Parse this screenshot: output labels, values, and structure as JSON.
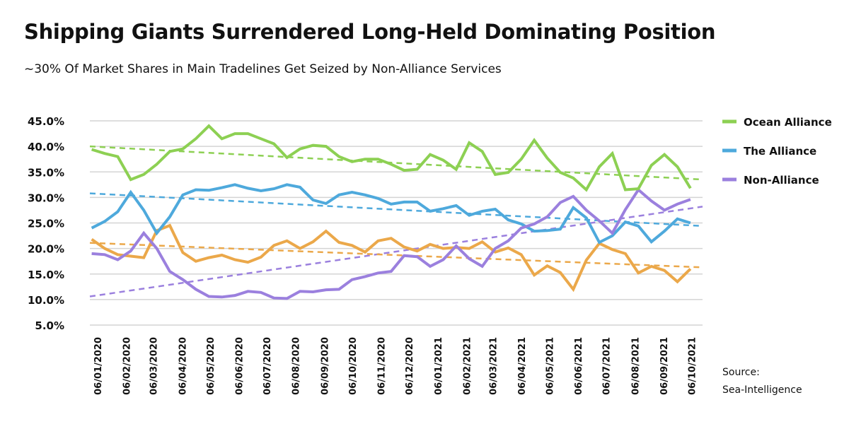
{
  "title": "Shipping Giants Surrendered Long-Held Dominating Position",
  "subtitle": "~30% Of Market Shares in Main Tradelines Get Seized by Non-Alliance Services",
  "source": {
    "line1": "Source:",
    "line2": "Sea-Intelligence"
  },
  "chart_data": {
    "type": "line",
    "title": "Shipping Giants Surrendered Long-Held Dominating Position",
    "subtitle": "~30% Of Market Shares in Main Tradelines Get Seized by Non-Alliance Services",
    "xlabel": "",
    "ylabel": "",
    "ylim": [
      5,
      45
    ],
    "xlim": [
      "2019-12-28",
      "2021-10-17"
    ],
    "grid": true,
    "legend_position": "right",
    "y_ticks": [
      "45.0%",
      "40.0%",
      "35.0%",
      "30.0%",
      "25.0%",
      "20.0%",
      "15.0%",
      "10.0%",
      "5.0%"
    ],
    "y_tick_values": [
      45,
      40,
      35,
      30,
      25,
      20,
      15,
      10,
      5
    ],
    "x_ticks": [
      "06/01/2020",
      "06/02/2020",
      "06/03/2020",
      "06/04/2020",
      "06/05/2020",
      "06/06/2020",
      "06/07/2020",
      "06/08/2020",
      "06/09/2020",
      "06/10/2020",
      "06/11/2020",
      "06/12/2020",
      "06/01/2021",
      "06/02/2021",
      "06/03/2021",
      "06/04/2021",
      "06/05/2021",
      "06/06/2021",
      "06/07/2021",
      "06/08/2021",
      "06/09/2021",
      "06/10/2021"
    ],
    "x_tick_dates": [
      "2020-01-06",
      "2020-02-06",
      "2020-03-06",
      "2020-04-06",
      "2020-05-06",
      "2020-06-06",
      "2020-07-06",
      "2020-08-06",
      "2020-09-06",
      "2020-10-06",
      "2020-11-06",
      "2020-12-06",
      "2021-01-06",
      "2021-02-06",
      "2021-03-06",
      "2021-04-06",
      "2021-05-06",
      "2021-06-06",
      "2021-07-06",
      "2021-08-06",
      "2021-09-06",
      "2021-10-06"
    ],
    "x": [
      "2019-12-30",
      "2020-01-13",
      "2020-01-27",
      "2020-02-10",
      "2020-02-24",
      "2020-03-09",
      "2020-03-23",
      "2020-04-06",
      "2020-04-20",
      "2020-05-04",
      "2020-05-18",
      "2020-06-01",
      "2020-06-15",
      "2020-06-29",
      "2020-07-13",
      "2020-07-27",
      "2020-08-10",
      "2020-08-24",
      "2020-09-07",
      "2020-09-21",
      "2020-10-05",
      "2020-10-19",
      "2020-11-02",
      "2020-11-16",
      "2020-11-30",
      "2020-12-14",
      "2020-12-28",
      "2021-01-11",
      "2021-01-25",
      "2021-02-08",
      "2021-02-22",
      "2021-03-08",
      "2021-03-22",
      "2021-04-05",
      "2021-04-19",
      "2021-05-03",
      "2021-05-17",
      "2021-05-31",
      "2021-06-14",
      "2021-06-28",
      "2021-07-12",
      "2021-07-26",
      "2021-08-09",
      "2021-08-23",
      "2021-09-06",
      "2021-09-20",
      "2021-10-04"
    ],
    "series": [
      {
        "name": "Ocean Alliance",
        "color": "#8dd053",
        "legend": true,
        "values": [
          39.4,
          38.6,
          38,
          33.5,
          34.5,
          36.5,
          39,
          39.5,
          41.5,
          44,
          41.5,
          42.5,
          42.5,
          41.5,
          40.5,
          37.8,
          39.5,
          40.2,
          40,
          38,
          37,
          37.5,
          37.5,
          36.5,
          35.3,
          35.5,
          38.4,
          37.3,
          35.5,
          40.7,
          39,
          34.5,
          34.9,
          37.5,
          41.2,
          37.7,
          34.9,
          33.8,
          31.5,
          36,
          38.6,
          31.5,
          31.7,
          36.3,
          38.4,
          36,
          31.8
        ],
        "trend": [
          40,
          33.5
        ]
      },
      {
        "name": "The Alliance",
        "color": "#4ea9dc",
        "legend": true,
        "values": [
          24,
          25.3,
          27.2,
          31,
          27.5,
          23,
          26.2,
          30.5,
          31.5,
          31.4,
          31.9,
          32.5,
          31.8,
          31.3,
          31.7,
          32.5,
          32,
          29.5,
          28.8,
          30.5,
          31,
          30.5,
          29.8,
          28.7,
          29.1,
          29.1,
          27.3,
          27.8,
          28.4,
          26.5,
          27.3,
          27.7,
          25.6,
          24.8,
          23.4,
          23.5,
          23.8,
          28,
          26,
          21.2,
          22.5,
          25.2,
          24.4,
          21.3,
          23.4,
          25.8,
          25
        ],
        "trend": [
          30.8,
          24.4
        ]
      },
      {
        "name": "Non-Alliance",
        "color": "#9b80de",
        "legend": true,
        "values": [
          19,
          18.8,
          17.8,
          19.5,
          23,
          20,
          15.5,
          13.9,
          12,
          10.6,
          10.5,
          10.8,
          11.6,
          11.4,
          10.3,
          10.2,
          11.6,
          11.5,
          11.9,
          12,
          13.9,
          14.5,
          15.2,
          15.5,
          18.6,
          18.4,
          16.5,
          17.8,
          20.5,
          18,
          16.5,
          20,
          21.5,
          24,
          24.8,
          26.2,
          29,
          30.2,
          27.5,
          25.4,
          23,
          27.6,
          31.5,
          29.3,
          27.5,
          28.7,
          29.6
        ],
        "trend": [
          10.6,
          28.2
        ]
      },
      {
        "color": "#eba84a",
        "legend": false,
        "values": [
          21.8,
          20,
          18.8,
          18.5,
          18.2,
          23.5,
          24.5,
          19.2,
          17.5,
          18.2,
          18.7,
          17.8,
          17.3,
          18.3,
          20.6,
          21.5,
          20,
          21.3,
          23.4,
          21.2,
          20.6,
          19.3,
          21.5,
          22,
          20.3,
          19.5,
          20.8,
          20,
          20.2,
          20,
          21.3,
          19.3,
          20.1,
          18.8,
          14.8,
          16.6,
          15.3,
          12,
          17.7,
          21,
          19.8,
          19,
          15.2,
          16.5,
          15.7,
          13.5,
          16
        ],
        "trend": [
          21.1,
          16.3
        ]
      }
    ]
  }
}
